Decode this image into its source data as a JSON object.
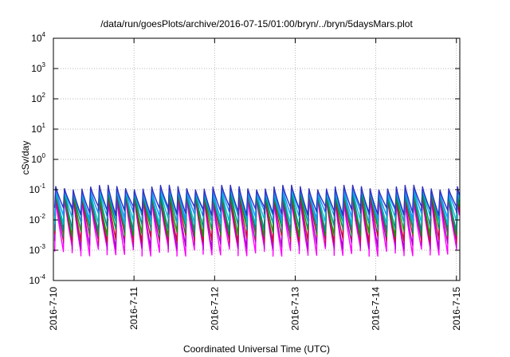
{
  "chart_data": {
    "type": "line",
    "title": "/data/run/goesPlots/archive/2016-07-15/01:00/bryn/../bryn/5daysMars.plot",
    "xlabel": "Coordinated Universal Time (UTC)",
    "ylabel": "cSv/day",
    "x_scale": "time",
    "y_scale": "log",
    "xlim": [
      "2016-07-10T00:00",
      "2016-07-15T01:00"
    ],
    "ylim": [
      0.0001,
      10000
    ],
    "grid": true,
    "x_ticks": [
      {
        "label": "2016-7-10",
        "value": "2016-07-10T00:00"
      },
      {
        "label": "2016-7-11",
        "value": "2016-07-11T00:00"
      },
      {
        "label": "2016-7-12",
        "value": "2016-07-12T00:00"
      },
      {
        "label": "2016-7-13",
        "value": "2016-07-13T00:00"
      },
      {
        "label": "2016-7-14",
        "value": "2016-07-14T00:00"
      },
      {
        "label": "2016-7-15",
        "value": "2016-07-15T00:00"
      }
    ],
    "y_ticks": [
      {
        "base": "10",
        "exp": "-4",
        "value": 0.0001
      },
      {
        "base": "10",
        "exp": "-3",
        "value": 0.001
      },
      {
        "base": "10",
        "exp": "-2",
        "value": 0.01
      },
      {
        "base": "10",
        "exp": "-1",
        "value": 0.1
      },
      {
        "base": "10",
        "exp": "0",
        "value": 1
      },
      {
        "base": "10",
        "exp": "1",
        "value": 10
      },
      {
        "base": "10",
        "exp": "2",
        "value": 100
      },
      {
        "base": "10",
        "exp": "3",
        "value": 1000
      },
      {
        "base": "10",
        "exp": "4",
        "value": 10000
      }
    ],
    "period_hours": 2.6,
    "series": [
      {
        "color": "#ff00ff",
        "peak": 0.05,
        "trough": 0.0009
      },
      {
        "color": "#b000d0",
        "peak": 0.055,
        "trough": 0.0015
      },
      {
        "color": "#c8102e",
        "peak": 0.07,
        "trough": 0.0025
      },
      {
        "color": "#00a000",
        "peak": 0.08,
        "trough": 0.004
      },
      {
        "color": "#008b8b",
        "peak": 0.09,
        "trough": 0.006
      },
      {
        "color": "#00bcd4",
        "peak": 0.095,
        "trough": 0.01
      },
      {
        "color": "#1e90ff",
        "peak": 0.105,
        "trough": 0.015
      },
      {
        "color": "#3030c0",
        "peak": 0.12,
        "trough": 0.02
      }
    ]
  }
}
